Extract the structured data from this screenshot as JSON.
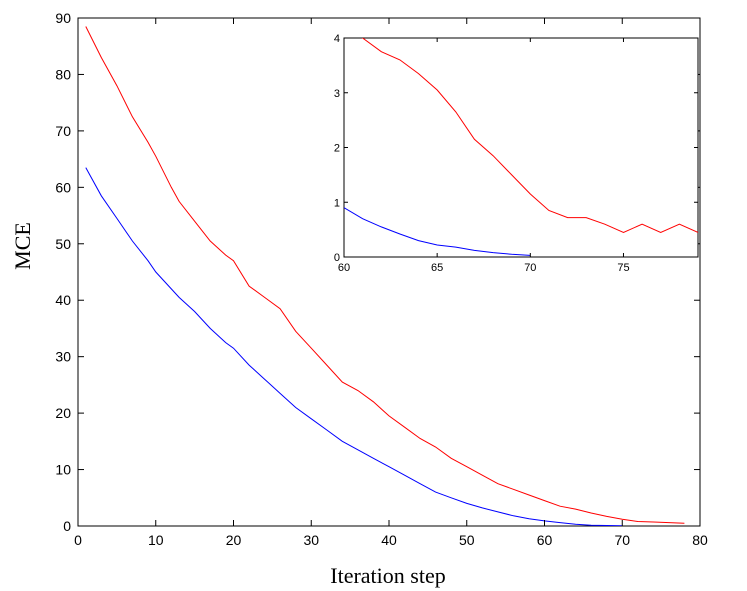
{
  "chart_data": [
    {
      "type": "line",
      "xlabel": "Iteration step",
      "ylabel": "MCE",
      "xlim": [
        0,
        80
      ],
      "ylim": [
        0,
        90
      ],
      "xticks": [
        0,
        10,
        20,
        30,
        40,
        50,
        60,
        70,
        80
      ],
      "yticks": [
        0,
        10,
        20,
        30,
        40,
        50,
        60,
        70,
        80,
        90
      ],
      "grid": false,
      "series": [
        {
          "color": "#ff0000",
          "x": [
            1,
            3,
            5,
            7,
            9,
            10,
            12,
            13,
            15,
            17,
            19,
            20,
            22,
            24,
            26,
            28,
            30,
            32,
            34,
            36,
            38,
            40,
            42,
            44,
            46,
            48,
            50,
            52,
            54,
            56,
            58,
            60,
            62,
            64,
            66,
            68,
            70,
            72,
            74,
            76,
            78
          ],
          "y": [
            88.5,
            83,
            78,
            72.5,
            68,
            65.5,
            60,
            57.5,
            54,
            50.5,
            48,
            47,
            42.5,
            40.5,
            38.5,
            34.5,
            31.5,
            28.5,
            25.5,
            24,
            22,
            19.5,
            17.5,
            15.5,
            14,
            12,
            10.5,
            9,
            7.5,
            6.5,
            5.5,
            4.5,
            3.5,
            3,
            2.3,
            1.7,
            1.2,
            0.8,
            0.7,
            0.6,
            0.5
          ]
        },
        {
          "color": "#0000ff",
          "x": [
            1,
            3,
            5,
            7,
            9,
            10,
            12,
            13,
            15,
            17,
            19,
            20,
            22,
            24,
            26,
            28,
            30,
            32,
            34,
            36,
            38,
            40,
            42,
            44,
            46,
            48,
            50,
            52,
            54,
            56,
            58,
            60,
            62,
            64,
            66,
            68,
            70
          ],
          "y": [
            63.5,
            58.5,
            54.5,
            50.5,
            47,
            45,
            42,
            40.5,
            38,
            35,
            32.5,
            31.5,
            28.5,
            26,
            23.5,
            21,
            19,
            17,
            15,
            13.5,
            12,
            10.5,
            9,
            7.5,
            6,
            5,
            4,
            3.2,
            2.5,
            1.8,
            1.3,
            0.9,
            0.6,
            0.3,
            0.15,
            0.08,
            0.03
          ]
        }
      ]
    },
    {
      "type": "line",
      "xlim": [
        60,
        79
      ],
      "ylim": [
        0,
        4
      ],
      "xticks": [
        60,
        65,
        70,
        75
      ],
      "yticks": [
        0,
        1,
        2,
        3,
        4
      ],
      "grid": false,
      "series": [
        {
          "color": "#ff0000",
          "x": [
            60,
            61,
            62,
            63,
            64,
            65,
            66,
            67,
            68,
            69,
            70,
            71,
            72,
            73,
            74,
            75,
            76,
            77,
            78,
            79
          ],
          "y": [
            4.2,
            4.0,
            3.75,
            3.6,
            3.35,
            3.05,
            2.65,
            2.15,
            1.85,
            1.5,
            1.15,
            0.85,
            0.72,
            0.72,
            0.6,
            0.45,
            0.6,
            0.45,
            0.6,
            0.45
          ]
        },
        {
          "color": "#0000ff",
          "x": [
            60,
            61,
            62,
            63,
            64,
            65,
            66,
            67,
            68,
            69,
            70
          ],
          "y": [
            0.9,
            0.7,
            0.55,
            0.42,
            0.3,
            0.22,
            0.18,
            0.12,
            0.08,
            0.05,
            0.03
          ]
        }
      ]
    }
  ]
}
